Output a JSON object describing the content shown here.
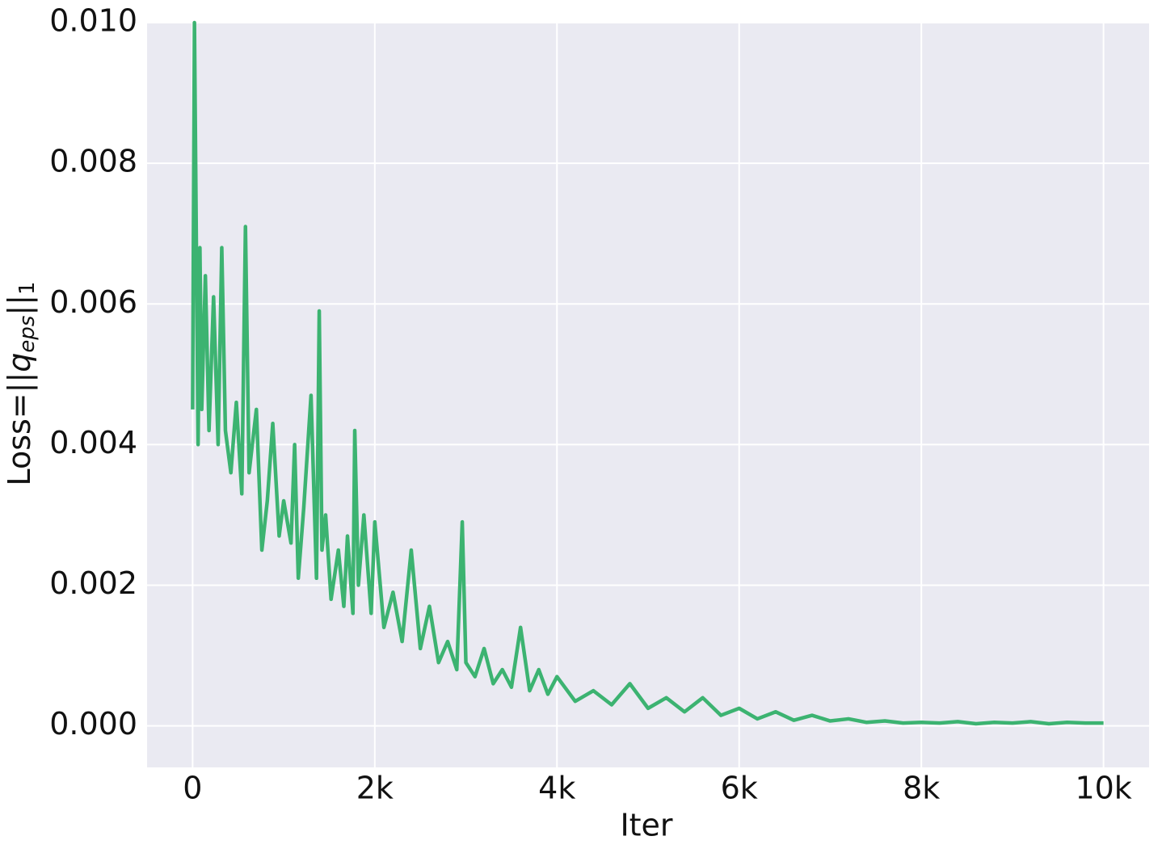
{
  "chart_data": {
    "type": "line",
    "xlabel": "Iter",
    "ylabel": [
      "Loss=||",
      "q",
      "eps",
      "||",
      "1"
    ],
    "x": [
      0,
      20,
      60,
      80,
      100,
      140,
      180,
      230,
      280,
      320,
      360,
      420,
      480,
      540,
      580,
      620,
      700,
      760,
      820,
      880,
      950,
      1000,
      1080,
      1120,
      1160,
      1220,
      1300,
      1360,
      1390,
      1420,
      1460,
      1520,
      1600,
      1660,
      1700,
      1760,
      1780,
      1820,
      1880,
      1960,
      2000,
      2100,
      2200,
      2300,
      2400,
      2500,
      2600,
      2700,
      2800,
      2900,
      2960,
      3000,
      3100,
      3200,
      3300,
      3400,
      3500,
      3600,
      3700,
      3800,
      3900,
      4000,
      4200,
      4400,
      4600,
      4800,
      5000,
      5200,
      5400,
      5600,
      5800,
      6000,
      6200,
      6400,
      6600,
      6800,
      7000,
      7200,
      7400,
      7600,
      7800,
      8000,
      8200,
      8400,
      8600,
      8800,
      9000,
      9200,
      9400,
      9600,
      9800,
      10000
    ],
    "series": [
      {
        "color": "#3cb371",
        "values": [
          0.0045,
          0.01,
          0.004,
          0.0068,
          0.0045,
          0.0064,
          0.0042,
          0.0061,
          0.004,
          0.0068,
          0.0042,
          0.0036,
          0.0046,
          0.0033,
          0.0071,
          0.0036,
          0.0045,
          0.0025,
          0.0032,
          0.0043,
          0.0027,
          0.0032,
          0.0026,
          0.004,
          0.0021,
          0.0031,
          0.0047,
          0.0021,
          0.0059,
          0.0025,
          0.003,
          0.0018,
          0.0025,
          0.0017,
          0.0027,
          0.0016,
          0.0042,
          0.002,
          0.003,
          0.0016,
          0.0029,
          0.0014,
          0.0019,
          0.0012,
          0.0025,
          0.0011,
          0.0017,
          0.0009,
          0.0012,
          0.0008,
          0.0029,
          0.0009,
          0.0007,
          0.0011,
          0.0006,
          0.0008,
          0.00055,
          0.0014,
          0.0005,
          0.0008,
          0.00045,
          0.0007,
          0.00035,
          0.0005,
          0.0003,
          0.0006,
          0.00025,
          0.0004,
          0.0002,
          0.0004,
          0.00015,
          0.00025,
          0.0001,
          0.0002,
          8e-05,
          0.00015,
          7e-05,
          0.0001,
          5e-05,
          7e-05,
          4e-05,
          5e-05,
          4e-05,
          6e-05,
          3e-05,
          5e-05,
          4e-05,
          6e-05,
          3e-05,
          5e-05,
          4e-05,
          4e-05
        ]
      }
    ],
    "xlim": [
      -500,
      10500
    ],
    "ylim": [
      -0.00059,
      0.01
    ],
    "xticks": [
      0,
      {
        "value": 2000,
        "label": "2k"
      },
      {
        "value": 4000,
        "label": "4k"
      },
      {
        "value": 6000,
        "label": "6k"
      },
      {
        "value": 8000,
        "label": "8k"
      },
      {
        "value": 10000,
        "label": "10k"
      }
    ],
    "yticks": [
      {
        "value": 0,
        "label": "0.000"
      },
      {
        "value": 0.002,
        "label": "0.002"
      },
      {
        "value": 0.004,
        "label": "0.004"
      },
      {
        "value": 0.006,
        "label": "0.006"
      },
      {
        "value": 0.008,
        "label": "0.008"
      },
      {
        "value": 0.01,
        "label": "0.010"
      }
    ],
    "grid": true,
    "background": "#eaeaf2"
  }
}
